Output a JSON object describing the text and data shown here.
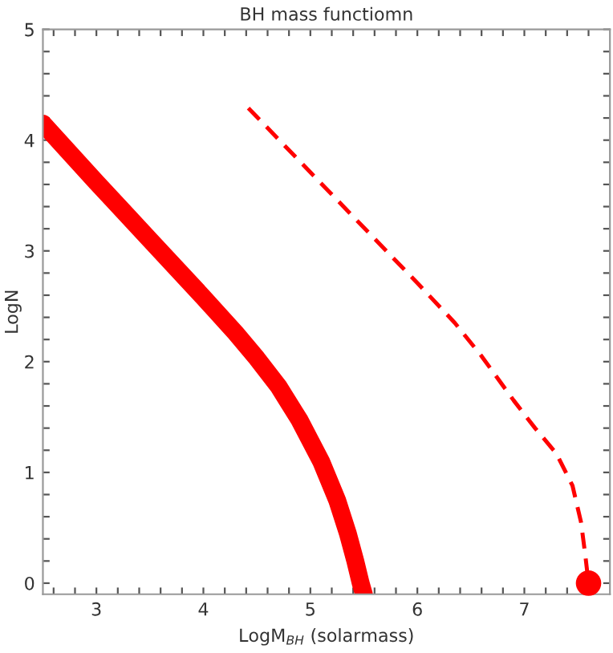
{
  "chart_data": {
    "type": "line",
    "title": "BH mass functiomn",
    "xlabel": "LogM$_{BH}$ (solarmass)",
    "ylabel": "LogN",
    "xlim": [
      2.5,
      7.8
    ],
    "ylim": [
      -0.1,
      5
    ],
    "xticks": [
      {
        "value": 2.6,
        "label": null
      },
      {
        "value": 2.8,
        "label": null
      },
      3,
      {
        "value": 3.2,
        "label": null
      },
      {
        "value": 3.4,
        "label": null
      },
      {
        "value": 3.6,
        "label": null
      },
      {
        "value": 3.8,
        "label": null
      },
      4,
      {
        "value": 4.2,
        "label": null
      },
      {
        "value": 4.4,
        "label": null
      },
      {
        "value": 4.6,
        "label": null
      },
      {
        "value": 4.8,
        "label": null
      },
      5,
      {
        "value": 5.2,
        "label": null
      },
      {
        "value": 5.4,
        "label": null
      },
      {
        "value": 5.6,
        "label": null
      },
      {
        "value": 5.8,
        "label": null
      },
      6,
      {
        "value": 6.2,
        "label": null
      },
      {
        "value": 6.4,
        "label": null
      },
      {
        "value": 6.6,
        "label": null
      },
      {
        "value": 6.8,
        "label": null
      },
      7,
      {
        "value": 7.2,
        "label": null
      },
      {
        "value": 7.4,
        "label": null
      },
      {
        "value": 7.6,
        "label": null
      }
    ],
    "yticks": [
      0,
      {
        "value": 0.2,
        "label": null
      },
      {
        "value": 0.4,
        "label": null
      },
      {
        "value": 0.6,
        "label": null
      },
      {
        "value": 0.8,
        "label": null
      },
      1,
      {
        "value": 1.2,
        "label": null
      },
      {
        "value": 1.4,
        "label": null
      },
      {
        "value": 1.6,
        "label": null
      },
      {
        "value": 1.8,
        "label": null
      },
      2,
      {
        "value": 2.2,
        "label": null
      },
      {
        "value": 2.4,
        "label": null
      },
      {
        "value": 2.6,
        "label": null
      },
      {
        "value": 2.8,
        "label": null
      },
      3,
      {
        "value": 3.2,
        "label": null
      },
      {
        "value": 3.4,
        "label": null
      },
      {
        "value": 3.6,
        "label": null
      },
      {
        "value": 3.8,
        "label": null
      },
      4,
      {
        "value": 4.2,
        "label": null
      },
      {
        "value": 4.4,
        "label": null
      },
      {
        "value": 4.6,
        "label": null
      },
      {
        "value": 4.8,
        "label": null
      },
      5
    ],
    "grid": false,
    "legend": false,
    "series": [
      {
        "color": "#ff0000",
        "line_style": "solid",
        "x": [
          2.5,
          3,
          3.5,
          4,
          4.3,
          4.5,
          4.7,
          4.9,
          5.1,
          5.25,
          5.35,
          5.42,
          5.47,
          5.5
        ],
        "values": [
          4.15,
          3.62,
          3.1,
          2.58,
          2.26,
          2.03,
          1.78,
          1.47,
          1.1,
          0.75,
          0.45,
          0.2,
          0.0,
          -0.1
        ]
      },
      {
        "color": "#ff0000",
        "line_style": "dashed",
        "x": [
          4.42,
          5,
          5.5,
          6,
          6.35,
          6.6,
          6.9,
          7.1,
          7.3,
          7.45,
          7.53,
          7.57,
          7.6
        ],
        "values": [
          4.29,
          3.71,
          3.21,
          2.71,
          2.35,
          2.05,
          1.65,
          1.4,
          1.17,
          0.88,
          0.55,
          0.25,
          0.0
        ]
      },
      {
        "type": "scatter",
        "color": "#ff0000",
        "marker": "circle",
        "x": [
          7.6
        ],
        "values": [
          0.0
        ]
      }
    ]
  }
}
